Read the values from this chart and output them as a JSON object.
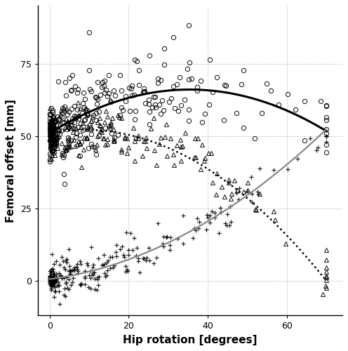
{
  "xlabel": "Hip rotation [degrees]",
  "ylabel": "Femoral offset [mm]",
  "xlim": [
    -3,
    74
  ],
  "ylim": [
    -12,
    95
  ],
  "xticks": [
    0,
    20,
    40,
    60
  ],
  "yticks": [
    0,
    25,
    50,
    75
  ],
  "background_color": "#ffffff",
  "grid_color": "#aaaaaa",
  "seed": 12345,
  "circle_trend_coeffs": [
    -0.012,
    0.85,
    51.0
  ],
  "triangle_trend_coeffs": [
    -0.014,
    0.25,
    51.0
  ],
  "cross_trend_coeffs": [
    0.008,
    0.18,
    0.5
  ],
  "circles": {
    "n_cluster": 70,
    "cluster_x_std": 0.8,
    "cluster_y_mean": 51.0,
    "cluster_y_std": 4.0,
    "n_spread": 220,
    "spread_x_scale": 22,
    "spread_noise_std": 7.0,
    "color": "black",
    "marker": "o",
    "markersize": 4.5,
    "markeredgewidth": 0.8,
    "facecolor": "none"
  },
  "triangles": {
    "n_cluster": 50,
    "cluster_x_std": 0.8,
    "cluster_y_mean": 50.5,
    "cluster_y_std": 3.0,
    "n_spread": 180,
    "spread_x_scale": 22,
    "spread_noise_std": 5.0,
    "color": "black",
    "marker": "^",
    "markersize": 4.5,
    "markeredgewidth": 0.8,
    "facecolor": "none"
  },
  "crosses": {
    "n_cluster": 70,
    "cluster_x_std": 0.8,
    "cluster_y_mean": 0.5,
    "cluster_y_std": 1.5,
    "n_spread": 200,
    "spread_x_scale": 22,
    "spread_noise_std": 3.5,
    "color": "black",
    "marker": "P",
    "markersize": 4.0,
    "markeredgewidth": 0.9
  },
  "circle_trend": {
    "color": "black",
    "linewidth": 2.2,
    "linestyle": "solid"
  },
  "triangle_trend": {
    "color": "black",
    "linewidth": 1.8,
    "linestyle": "dotted"
  },
  "cross_trend": {
    "color": "#888888",
    "linewidth": 1.6,
    "linestyle": "solid"
  }
}
